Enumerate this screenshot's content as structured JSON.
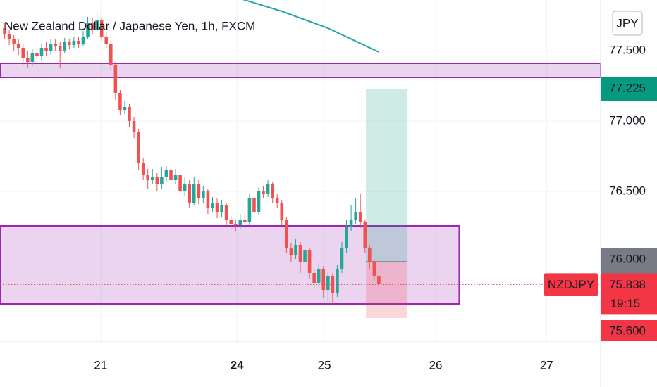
{
  "chart_data": {
    "type": "candlestick",
    "title": "New Zealand Dollar / Japanese Yen, 1h, FXCM",
    "currency": "JPY",
    "x": [
      0,
      1,
      2,
      3,
      4,
      5,
      6,
      7,
      8,
      9,
      10,
      11,
      12,
      13,
      14,
      15,
      16,
      17,
      18,
      19,
      20,
      21,
      22,
      23,
      24,
      25,
      26,
      27,
      28,
      29,
      30,
      31,
      32,
      33,
      34,
      35,
      36,
      37,
      38,
      39,
      40,
      41,
      42,
      43,
      44,
      45,
      46,
      47,
      48,
      49,
      50,
      51,
      52,
      53,
      54,
      55,
      56,
      57,
      58,
      59,
      60,
      61,
      62,
      63,
      64,
      65,
      66,
      67,
      68,
      69,
      70,
      71,
      72,
      73,
      74,
      75,
      76,
      77,
      78,
      79,
      80,
      81
    ],
    "open": [
      77.66,
      77.62,
      77.58,
      77.55,
      77.52,
      77.45,
      77.42,
      77.48,
      77.46,
      77.52,
      77.5,
      77.55,
      77.53,
      77.5,
      77.56,
      77.54,
      77.57,
      77.55,
      77.6,
      77.7,
      77.65,
      77.72,
      77.6,
      77.55,
      77.4,
      77.2,
      77.08,
      77.1,
      77.0,
      76.92,
      76.7,
      76.62,
      76.58,
      76.6,
      76.55,
      76.6,
      76.65,
      76.58,
      76.62,
      76.5,
      76.55,
      76.42,
      76.55,
      76.45,
      76.5,
      76.38,
      76.42,
      76.35,
      76.4,
      76.3,
      76.27,
      76.26,
      76.3,
      76.28,
      76.45,
      76.35,
      76.5,
      76.48,
      76.55,
      76.45,
      76.42,
      76.3,
      76.1,
      76.05,
      76.12,
      76.0,
      76.08,
      75.92,
      75.85,
      75.95,
      75.8,
      75.9,
      75.78,
      75.95,
      76.1,
      76.25,
      76.3,
      76.35,
      76.28,
      76.1,
      76.0,
      75.9
    ],
    "high": [
      77.7,
      77.65,
      77.61,
      77.58,
      77.55,
      77.5,
      77.51,
      77.52,
      77.55,
      77.56,
      77.58,
      77.58,
      77.56,
      77.59,
      77.58,
      77.6,
      77.6,
      77.64,
      77.74,
      77.73,
      77.78,
      77.74,
      77.63,
      77.57,
      77.42,
      77.22,
      77.14,
      77.12,
      77.03,
      76.94,
      76.74,
      76.66,
      76.66,
      76.63,
      76.67,
      76.68,
      76.67,
      76.66,
      76.64,
      76.6,
      76.58,
      76.6,
      76.58,
      76.54,
      76.52,
      76.46,
      76.45,
      76.44,
      76.42,
      76.33,
      76.3,
      76.34,
      76.33,
      76.48,
      76.48,
      76.53,
      76.54,
      76.58,
      76.57,
      76.48,
      76.44,
      76.32,
      76.13,
      76.16,
      76.14,
      76.12,
      76.1,
      75.95,
      75.99,
      75.97,
      75.93,
      75.92,
      75.98,
      76.14,
      76.3,
      76.4,
      76.45,
      76.48,
      76.3,
      76.12,
      76.02,
      75.92
    ],
    "low": [
      77.58,
      77.54,
      77.5,
      77.47,
      77.4,
      77.38,
      77.39,
      77.42,
      77.43,
      77.46,
      77.47,
      77.5,
      77.38,
      77.48,
      77.51,
      77.52,
      77.52,
      77.53,
      77.58,
      77.62,
      77.63,
      77.57,
      77.52,
      77.36,
      77.15,
      77.04,
      77.05,
      76.96,
      76.88,
      76.65,
      76.58,
      76.52,
      76.55,
      76.5,
      76.52,
      76.57,
      76.54,
      76.55,
      76.46,
      76.47,
      76.38,
      76.4,
      76.41,
      76.42,
      76.34,
      76.35,
      76.31,
      76.32,
      76.26,
      76.23,
      76.22,
      76.23,
      76.24,
      76.26,
      76.32,
      76.33,
      76.45,
      76.46,
      76.42,
      76.38,
      76.26,
      76.06,
      76.0,
      76.02,
      75.92,
      75.96,
      75.88,
      75.8,
      75.82,
      75.74,
      75.72,
      75.7,
      75.75,
      75.92,
      76.06,
      76.22,
      76.27,
      76.24,
      76.06,
      75.95,
      75.86,
      75.8
    ],
    "close": [
      77.62,
      77.58,
      77.55,
      77.52,
      77.45,
      77.42,
      77.48,
      77.46,
      77.52,
      77.5,
      77.55,
      77.53,
      77.5,
      77.56,
      77.54,
      77.57,
      77.55,
      77.6,
      77.7,
      77.65,
      77.72,
      77.6,
      77.55,
      77.4,
      77.2,
      77.08,
      77.1,
      77.0,
      76.92,
      76.7,
      76.62,
      76.58,
      76.6,
      76.55,
      76.6,
      76.65,
      76.58,
      76.62,
      76.5,
      76.55,
      76.42,
      76.55,
      76.45,
      76.5,
      76.38,
      76.42,
      76.35,
      76.4,
      76.3,
      76.27,
      76.26,
      76.3,
      76.28,
      76.45,
      76.35,
      76.5,
      76.48,
      76.55,
      76.45,
      76.42,
      76.3,
      76.1,
      76.05,
      76.12,
      76.0,
      76.08,
      75.92,
      75.85,
      75.95,
      75.8,
      75.9,
      75.78,
      75.95,
      76.1,
      76.25,
      76.3,
      76.35,
      76.28,
      76.1,
      76.0,
      75.9,
      75.84
    ],
    "up_color": "#26a69a",
    "down_color": "#ef5350",
    "xlim": [
      -1,
      129
    ],
    "ylim": [
      75.435,
      77.86
    ],
    "xticks": [
      {
        "value": 20.8,
        "label": "21"
      },
      {
        "value": 50.3,
        "label": "24",
        "emphasis": true
      },
      {
        "value": 69.2,
        "label": "25"
      },
      {
        "value": 93.3,
        "label": "26"
      },
      {
        "value": 117.3,
        "label": "27"
      }
    ],
    "yticks": [
      {
        "value": 77.5,
        "label": "77.500"
      },
      {
        "value": 77.0,
        "label": "77.000"
      },
      {
        "value": 76.5,
        "label": "76.500"
      }
    ],
    "grid": true,
    "ma": {
      "color": "#26a6a6",
      "x": [
        50,
        60,
        70,
        81
      ],
      "values": [
        77.88,
        77.78,
        77.66,
        77.49
      ]
    },
    "zones": [
      {
        "x0": -1,
        "x1": 129,
        "top": 77.41,
        "bottom": 77.31,
        "color": "#9c27b0"
      },
      {
        "x0": -1,
        "x1": 98.4,
        "top": 76.255,
        "bottom": 75.7,
        "color": "#9c27b0"
      }
    ],
    "position": {
      "x0": 78.2,
      "x1": 87.2,
      "target": {
        "value": 77.225,
        "label": "77.225"
      },
      "entry": {
        "value": 76.0,
        "label": "76.000"
      },
      "stop": {
        "value": 75.6,
        "label": "75.600"
      }
    },
    "last": {
      "symbol": "NZDJPY",
      "value": 75.838,
      "label": "75.838",
      "countdown": "19:15"
    }
  }
}
